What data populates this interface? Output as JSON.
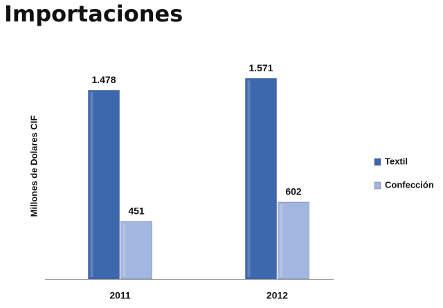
{
  "chart_data": {
    "type": "bar",
    "title": "Importaciones",
    "y_label": "Millones de Dolares CIF",
    "categories": [
      "2011",
      "2012"
    ],
    "series": [
      {
        "name": "Textil",
        "color": "#3d68ae",
        "values": [
          1478,
          1571
        ],
        "value_labels": [
          "1.478",
          "1.571"
        ]
      },
      {
        "name": "Confección",
        "color": "#a3b6df",
        "values": [
          451,
          602
        ],
        "value_labels": [
          "451",
          "602"
        ]
      }
    ],
    "ylim": [
      0,
      1800
    ],
    "legend": "right"
  }
}
